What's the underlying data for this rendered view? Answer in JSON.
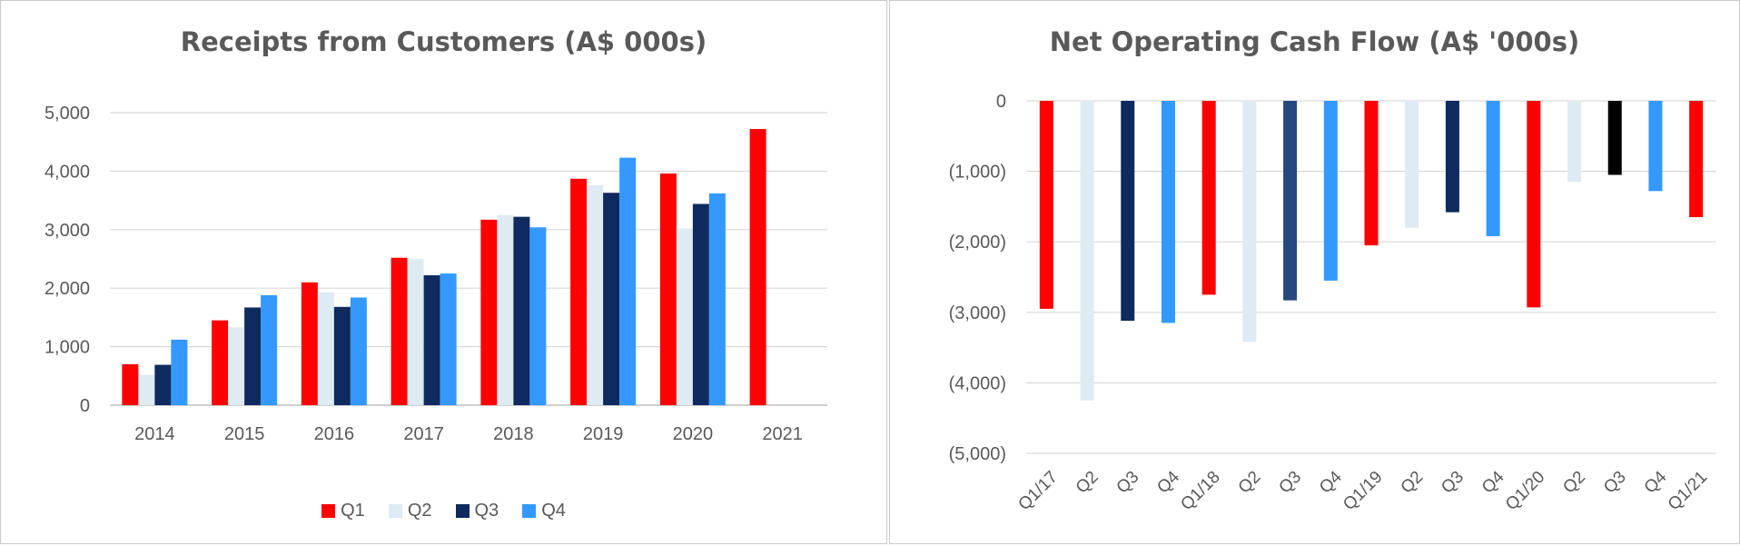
{
  "chart_data": [
    {
      "type": "bar",
      "title": "Receipts from Customers (A$ 000s)",
      "categories": [
        "2014",
        "2015",
        "2016",
        "2017",
        "2018",
        "2019",
        "2020",
        "2021"
      ],
      "series": [
        {
          "name": "Q1",
          "color": "#ff0000",
          "values": [
            700,
            1450,
            2100,
            2520,
            3170,
            3870,
            3960,
            4720
          ]
        },
        {
          "name": "Q2",
          "color": "#deebf2",
          "values": [
            520,
            1330,
            1930,
            2500,
            3250,
            3760,
            3020,
            null
          ]
        },
        {
          "name": "Q3",
          "color": "#0e2a5e",
          "values": [
            690,
            1670,
            1680,
            2220,
            3220,
            3630,
            3440,
            null
          ]
        },
        {
          "name": "Q4",
          "color": "#3399ff",
          "values": [
            1120,
            1880,
            1840,
            2250,
            3040,
            4230,
            3620,
            null
          ]
        }
      ],
      "ylim": [
        0,
        5000
      ],
      "yticks": [
        0,
        1000,
        2000,
        3000,
        4000,
        5000
      ],
      "ytick_labels": [
        "0",
        "1,000",
        "2,000",
        "3,000",
        "4,000",
        "5,000"
      ],
      "grid": true,
      "legend_placement": "bottom"
    },
    {
      "type": "bar",
      "title": "Net Operating Cash Flow (A$ '000s)",
      "categories": [
        "Q1/17",
        "Q2",
        "Q3",
        "Q4",
        "Q1/18",
        "Q2",
        "Q3",
        "Q4",
        "Q1/19",
        "Q2",
        "Q3",
        "Q4",
        "Q1/20",
        "Q2",
        "Q3",
        "Q4",
        "Q1/21"
      ],
      "values": [
        -2950,
        -4250,
        -3120,
        -3150,
        -2750,
        -3420,
        -2830,
        -2550,
        -2050,
        -1800,
        -1580,
        -1920,
        -2930,
        -1150,
        -1050,
        -1280,
        -1650
      ],
      "colors": [
        "#ff0000",
        "#deebf2",
        "#0e2a5e",
        "#3399ff",
        "#ff0000",
        "#deebf2",
        "#24497f",
        "#3399ff",
        "#ff0000",
        "#deebf2",
        "#0e2a5e",
        "#3399ff",
        "#ff0000",
        "#deebf2",
        "#000000",
        "#3399ff",
        "#ff0000"
      ],
      "ylim": [
        -5000,
        0
      ],
      "yticks": [
        0,
        -1000,
        -2000,
        -3000,
        -4000,
        -5000
      ],
      "ytick_labels": [
        "0",
        "(1,000)",
        "(2,000)",
        "(3,000)",
        "(4,000)",
        "(5,000)"
      ],
      "grid": true,
      "legend_placement": "none"
    }
  ]
}
